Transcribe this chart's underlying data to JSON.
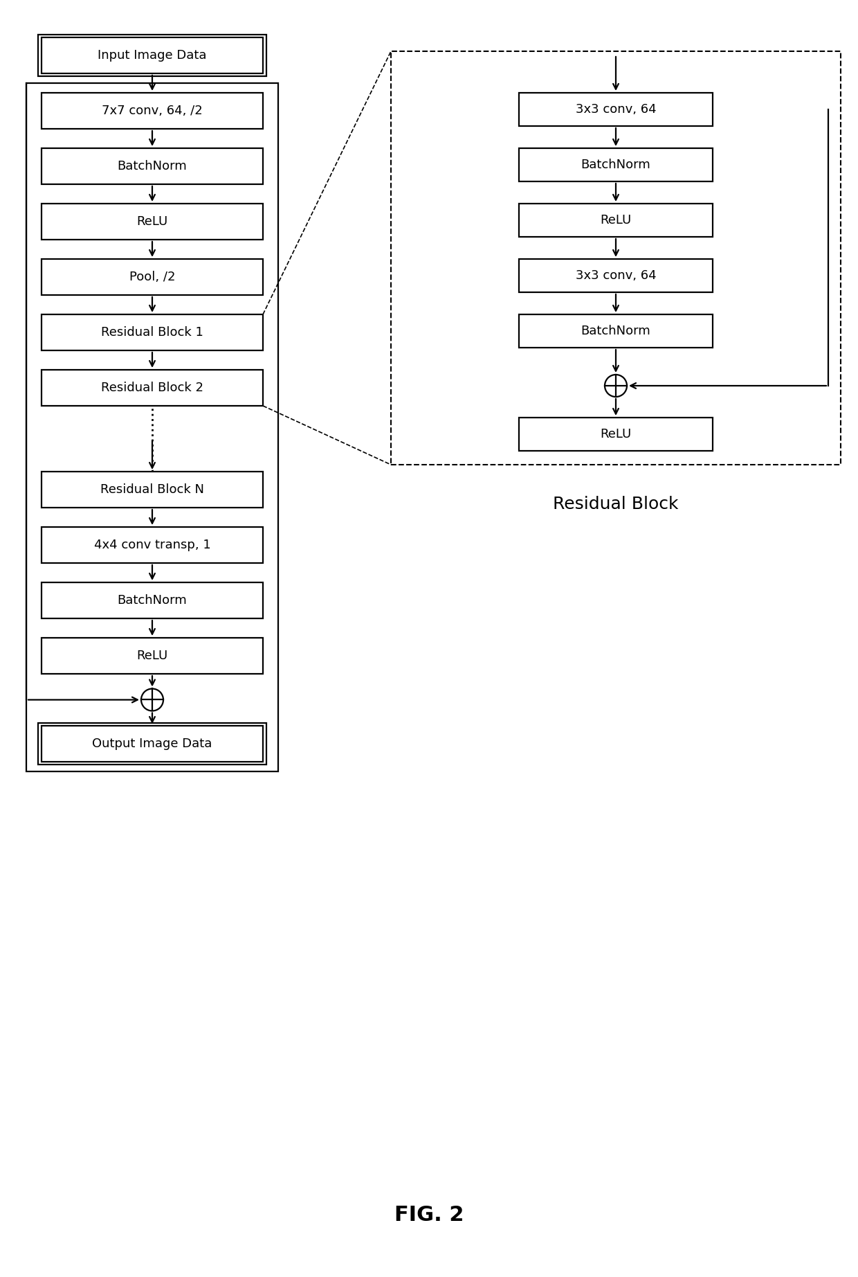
{
  "bg_color": "#ffffff",
  "title": "FIG. 2",
  "fig_width": 12.4,
  "fig_height": 18.44,
  "dpi": 100,
  "left_boxes": [
    {
      "label": "Input Image Data",
      "double": true
    },
    {
      "label": "7x7 conv, 64, /2",
      "double": false
    },
    {
      "label": "BatchNorm",
      "double": false
    },
    {
      "label": "ReLU",
      "double": false
    },
    {
      "label": "Pool, /2",
      "double": false
    },
    {
      "label": "Residual Block 1",
      "double": false
    },
    {
      "label": "Residual Block 2",
      "double": false
    },
    {
      "label": "Residual Block N",
      "double": false
    },
    {
      "label": "4x4 conv transp, 1",
      "double": false
    },
    {
      "label": "BatchNorm",
      "double": false
    },
    {
      "label": "ReLU",
      "double": false
    },
    {
      "label": "Output Image Data",
      "double": true
    }
  ],
  "right_boxes": [
    {
      "label": "3x3 conv, 64"
    },
    {
      "label": "BatchNorm"
    },
    {
      "label": "ReLU"
    },
    {
      "label": "3x3 conv, 64"
    },
    {
      "label": "BatchNorm"
    },
    {
      "label": "ReLU"
    }
  ],
  "right_label": "Residual Block",
  "lw": 1.6,
  "fontsize": 13,
  "title_fontsize": 22
}
